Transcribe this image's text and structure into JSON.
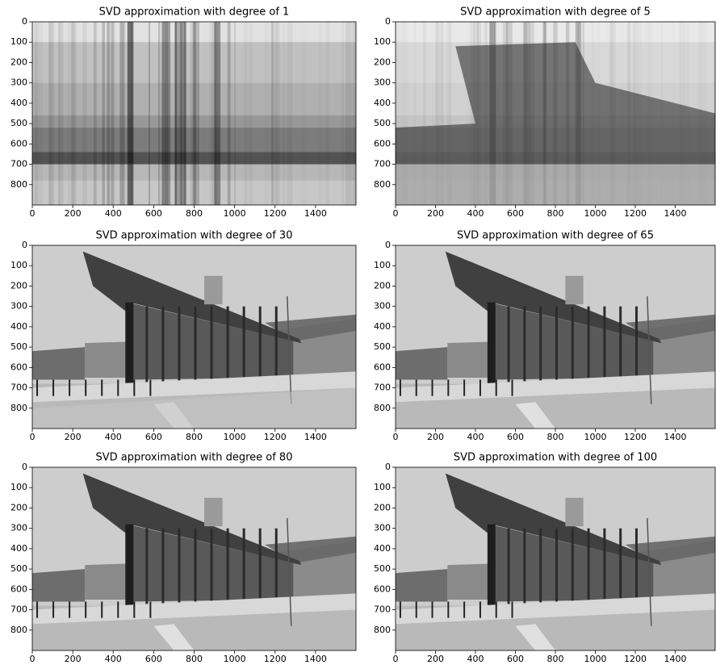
{
  "chart_data": [
    {
      "type": "image",
      "title": "SVD approximation with degree of 1",
      "xlim": [
        0,
        1600
      ],
      "ylim": [
        900,
        0
      ],
      "xticks": [
        0,
        200,
        400,
        600,
        800,
        1000,
        1200,
        1400
      ],
      "yticks": [
        0,
        100,
        200,
        300,
        400,
        500,
        600,
        700,
        800
      ]
    },
    {
      "type": "image",
      "title": "SVD approximation with degree of 5",
      "xlim": [
        0,
        1600
      ],
      "ylim": [
        900,
        0
      ],
      "xticks": [
        0,
        200,
        400,
        600,
        800,
        1000,
        1200,
        1400
      ],
      "yticks": [
        0,
        100,
        200,
        300,
        400,
        500,
        600,
        700,
        800
      ]
    },
    {
      "type": "image",
      "title": "SVD approximation with degree of 30",
      "xlim": [
        0,
        1600
      ],
      "ylim": [
        900,
        0
      ],
      "xticks": [
        0,
        200,
        400,
        600,
        800,
        1000,
        1200,
        1400
      ],
      "yticks": [
        0,
        100,
        200,
        300,
        400,
        500,
        600,
        700,
        800
      ]
    },
    {
      "type": "image",
      "title": "SVD approximation with degree of 65",
      "xlim": [
        0,
        1600
      ],
      "ylim": [
        900,
        0
      ],
      "xticks": [
        0,
        200,
        400,
        600,
        800,
        1000,
        1200,
        1400
      ],
      "yticks": [
        0,
        100,
        200,
        300,
        400,
        500,
        600,
        700,
        800
      ]
    },
    {
      "type": "image",
      "title": "SVD approximation with degree of 80",
      "xlim": [
        0,
        1600
      ],
      "ylim": [
        900,
        0
      ],
      "xticks": [
        0,
        200,
        400,
        600,
        800,
        1000,
        1200,
        1400
      ],
      "yticks": [
        0,
        100,
        200,
        300,
        400,
        500,
        600,
        700,
        800
      ]
    },
    {
      "type": "image",
      "title": "SVD approximation with degree of 100",
      "xlim": [
        0,
        1600
      ],
      "ylim": [
        900,
        0
      ],
      "xticks": [
        0,
        200,
        400,
        600,
        800,
        1000,
        1200,
        1400
      ],
      "yticks": [
        0,
        100,
        200,
        300,
        400,
        500,
        600,
        700,
        800
      ]
    }
  ]
}
